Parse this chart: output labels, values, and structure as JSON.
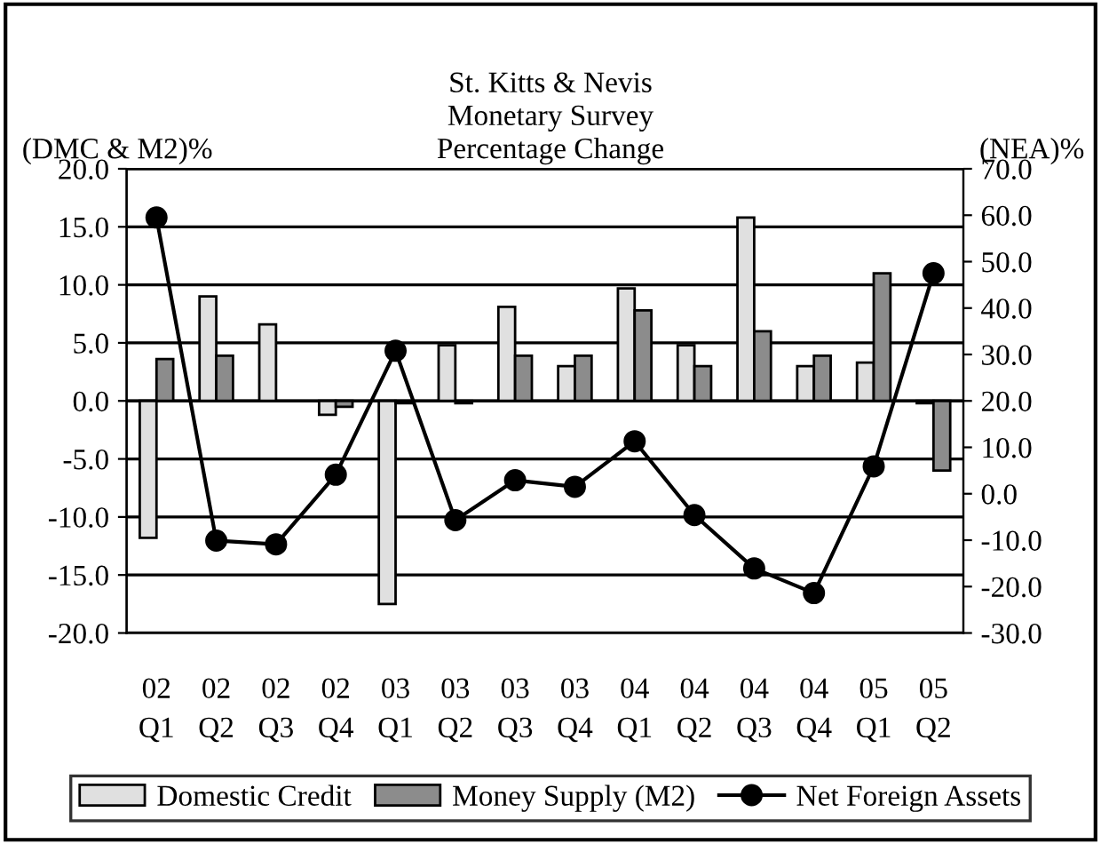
{
  "chart_data": {
    "type": "bar",
    "title": "St. Kitts & Nevis\nMonetary Survey\nPercentage Change",
    "ylabel": "(DMC & M2)%",
    "y2label": "(NEA)%",
    "categories": [
      "02\nQ1",
      "02\nQ2",
      "02\nQ3",
      "02\nQ4",
      "03\nQ1",
      "03\nQ2",
      "03\nQ3",
      "03\nQ4",
      "04\nQ1",
      "04\nQ2",
      "04\nQ3",
      "04\nQ4",
      "05\nQ1",
      "05\nQ2"
    ],
    "series": [
      {
        "name": "Domestic Credit",
        "color": "#e0e0e0",
        "values": [
          -11.8,
          9.0,
          6.6,
          -1.2,
          -17.5,
          4.8,
          8.1,
          3.0,
          9.7,
          4.8,
          15.8,
          3.0,
          3.3,
          -0.2
        ]
      },
      {
        "name": "Money Supply (M2)",
        "color": "#8c8c8c",
        "values": [
          3.6,
          3.9,
          null,
          -0.5,
          -0.2,
          -0.2,
          3.9,
          3.9,
          7.8,
          3.0,
          6.0,
          3.9,
          11.0,
          -6.0
        ]
      },
      {
        "name": "Net Foreign Assets",
        "type": "line",
        "axis": "y2",
        "color": "#000000",
        "marker": "circle",
        "line_style": "solid",
        "values": [
          59.5,
          -10.1,
          -10.9,
          4.1,
          30.8,
          -5.7,
          2.9,
          1.5,
          11.3,
          -4.6,
          -16.1,
          -21.4,
          5.9,
          47.5
        ]
      }
    ],
    "ylim": [
      -20,
      20
    ],
    "yticks": [
      {
        "value": -20,
        "label": "-20.0"
      },
      {
        "value": -15,
        "label": "-15.0"
      },
      {
        "value": -10,
        "label": "-10.0"
      },
      {
        "value": -5,
        "label": "-5.0"
      },
      {
        "value": 0,
        "label": "0.0"
      },
      {
        "value": 5,
        "label": "5.0"
      },
      {
        "value": 10,
        "label": "10.0"
      },
      {
        "value": 15,
        "label": "15.0"
      },
      {
        "value": 20,
        "label": "20.0"
      }
    ],
    "y2lim": [
      -30,
      70
    ],
    "y2ticks": [
      {
        "value": -30,
        "label": "-30.0"
      },
      {
        "value": -20,
        "label": "-20.0"
      },
      {
        "value": -10,
        "label": "-10.0"
      },
      {
        "value": 0,
        "label": "0.0"
      },
      {
        "value": 10,
        "label": "10.0"
      },
      {
        "value": 20,
        "label": "20.0"
      },
      {
        "value": 30,
        "label": "30.0"
      },
      {
        "value": 40,
        "label": "40.0"
      },
      {
        "value": 50,
        "label": "50.0"
      },
      {
        "value": 60,
        "label": "60.0"
      },
      {
        "value": 70,
        "label": "70.0"
      }
    ],
    "grid": "y",
    "legend": "bottom"
  }
}
